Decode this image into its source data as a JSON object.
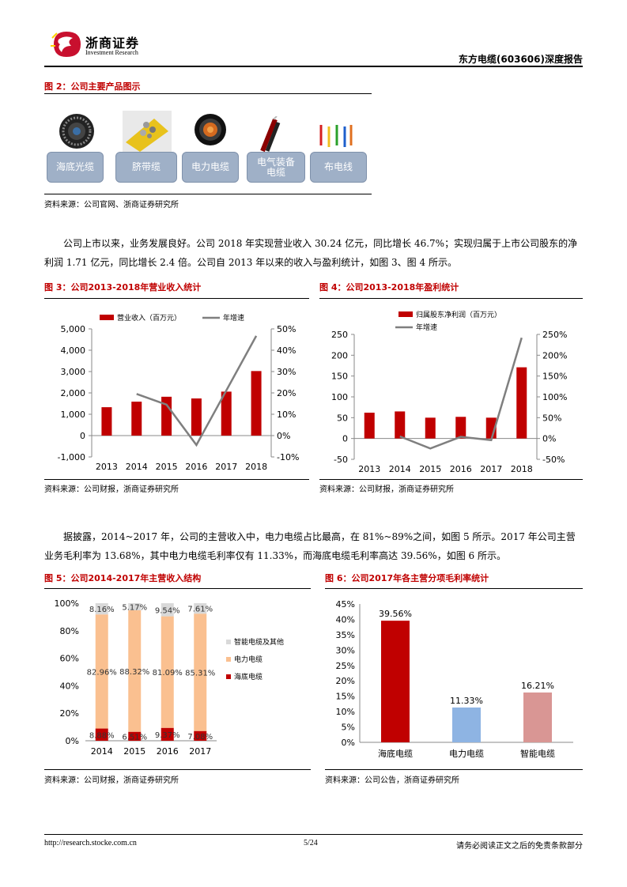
{
  "header": {
    "logo_cn": "浙商证券",
    "logo_en": "Investment Research",
    "report_title": "东方电缆(603606)深度报告"
  },
  "fig2": {
    "title": "图 2：公司主要产品图示",
    "products": [
      {
        "label": "海底光缆",
        "icon": "submarine-optical-cable-photo"
      },
      {
        "label": "脐带缆",
        "icon": "umbilical-cable-photo"
      },
      {
        "label": "电力电缆",
        "icon": "power-cable-photo"
      },
      {
        "label": "电气装备\n电缆",
        "icon": "electrical-equipment-cable-photo"
      },
      {
        "label": "布电线",
        "icon": "wiring-cable-photo"
      }
    ],
    "source": "资料来源：公司官网、浙商证券研究所"
  },
  "para1": "公司上市以来，业务发展良好。公司 2018 年实现营业收入 30.24 亿元，同比增长 46.7%；实现归属于上市公司股东的净利润 1.71 亿元，同比增长 2.4 倍。公司自 2013 年以来的收入与盈利统计，如图 3、图 4 所示。",
  "para2": "据披露，2014~2017 年，公司的主营收入中，电力电缆占比最高，在 81%~89%之间，如图 5 所示。2017 年公司主营业务毛利率为 13.68%，其中电力电缆毛利率仅有 11.33%，而海底电缆毛利率高达 39.56%，如图 6 所示。",
  "fig3": {
    "title": "图 3：公司2013-2018年营业收入统计",
    "source": "资料来源：公司财报，浙商证券研究所"
  },
  "fig4": {
    "title": "图 4：公司2013-2018年盈利统计",
    "source": "资料来源：公司财报，浙商证券研究所"
  },
  "fig5": {
    "title": "图 5：公司2014-2017年主营收入结构",
    "source": "资料来源：公司财报，浙商证券研究所"
  },
  "fig6": {
    "title": "图 6：公司2017年各主营分项毛利率统计",
    "source": "资料来源：公司公告，浙商证券研究所"
  },
  "colors": {
    "red": "#c00000",
    "grey": "#7f7f7f",
    "orange": "#fac090",
    "lightgrey": "#d9d9d9",
    "blue": "#8eb4e3",
    "pink": "#d99694"
  },
  "chart_data": [
    {
      "type": "bar",
      "categories": [
        "2013",
        "2014",
        "2015",
        "2016",
        "2017",
        "2018"
      ],
      "series": [
        {
          "name": "营业收入（百万元）",
          "values": [
            1330,
            1590,
            1820,
            1740,
            2060,
            3024
          ],
          "axis": "left"
        },
        {
          "name": "年增速",
          "type": "line",
          "values": [
            null,
            19.5,
            14.5,
            -4.4,
            null,
            46.7
          ],
          "axis": "right"
        }
      ],
      "ylim_left": [
        -1000,
        5000
      ],
      "yticks_left": [
        "-1,000",
        "0",
        "1,000",
        "2,000",
        "3,000",
        "4,000",
        "5,000"
      ],
      "ylim_right": [
        -10,
        50
      ],
      "yticks_right": [
        "-10%",
        "0%",
        "10%",
        "20%",
        "30%",
        "40%",
        "50%"
      ]
    },
    {
      "type": "bar",
      "categories": [
        "2013",
        "2014",
        "2015",
        "2016",
        "2017",
        "2018"
      ],
      "series": [
        {
          "name": "归属股东净利润（百万元）",
          "values": [
            62,
            65,
            50,
            52,
            50,
            171
          ],
          "axis": "left"
        },
        {
          "name": "年增速",
          "type": "line",
          "values": [
            null,
            5,
            -24,
            4,
            -4,
            242
          ],
          "axis": "right"
        }
      ],
      "ylim_left": [
        -50,
        250
      ],
      "yticks_left": [
        "-50",
        "0",
        "50",
        "100",
        "150",
        "200",
        "250"
      ],
      "ylim_right": [
        -50,
        250
      ],
      "yticks_right": [
        "-50%",
        "0%",
        "50%",
        "100%",
        "150%",
        "200%",
        "250%"
      ]
    },
    {
      "type": "bar",
      "stacked": true,
      "categories": [
        "2014",
        "2015",
        "2016",
        "2017"
      ],
      "series": [
        {
          "name": "海底电缆",
          "values": [
            8.88,
            6.51,
            9.37,
            7.08
          ],
          "labels": [
            "8.88%",
            "6.51%",
            "9.37%",
            "7.08%"
          ]
        },
        {
          "name": "电力电缆",
          "values": [
            82.96,
            88.32,
            81.09,
            85.31
          ],
          "labels": [
            "82.96%",
            "88.32%",
            "81.09%",
            "85.31%"
          ]
        },
        {
          "name": "智能电缆及其他",
          "values": [
            8.16,
            5.17,
            9.54,
            7.61
          ],
          "labels": [
            "8.16%",
            "5.17%",
            "9.54%",
            "7.61%"
          ]
        }
      ],
      "ylim": [
        0,
        100
      ],
      "yticks": [
        "0%",
        "20%",
        "40%",
        "60%",
        "80%",
        "100%"
      ]
    },
    {
      "type": "bar",
      "categories": [
        "海底电缆",
        "电力电缆",
        "智能电缆"
      ],
      "values": [
        39.56,
        11.33,
        16.21
      ],
      "labels": [
        "39.56%",
        "11.33%",
        "16.21%"
      ],
      "ylim": [
        0,
        45
      ],
      "yticks": [
        "0%",
        "5%",
        "10%",
        "15%",
        "20%",
        "25%",
        "30%",
        "35%",
        "40%",
        "45%"
      ]
    }
  ],
  "footer": {
    "url": "http://research.stocke.com.cn",
    "page": "5/24",
    "disclaimer": "请务必阅读正文之后的免责条款部分"
  }
}
